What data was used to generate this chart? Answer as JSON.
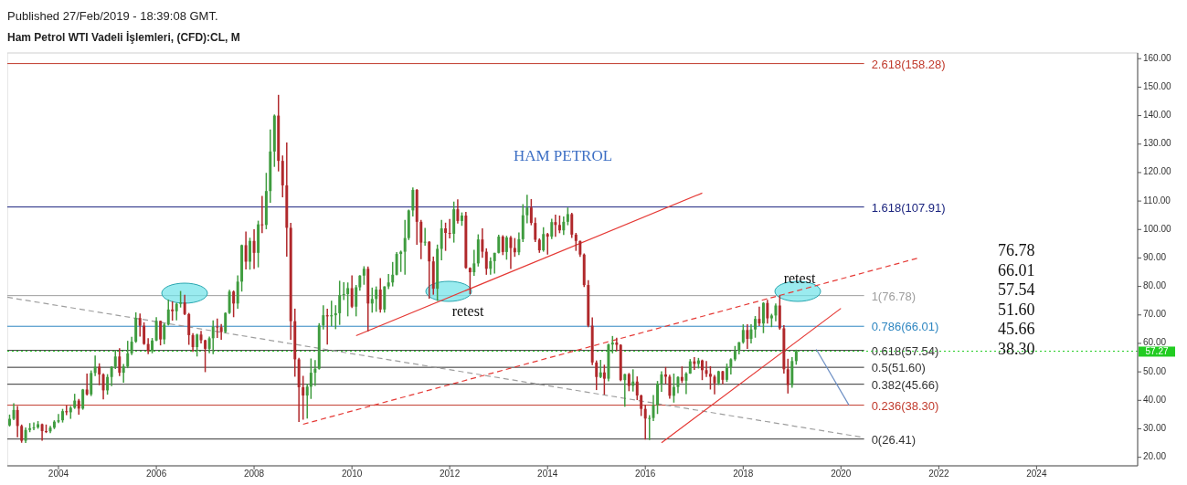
{
  "chart_data": {
    "type": "candlestick",
    "subtitle": "Published 27/Feb/2019 - 18:39:08 GMT.",
    "title": "Ham Petrol WTI Vadeli İşlemleri, (CFD):CL, M",
    "x": [
      "2003-01",
      "2003-02",
      "2003-03",
      "2003-04",
      "2003-05",
      "2003-06",
      "2003-07",
      "2003-08",
      "2003-09",
      "2003-10",
      "2003-11",
      "2003-12",
      "2004-01",
      "2004-02",
      "2004-03",
      "2004-04",
      "2004-05",
      "2004-06",
      "2004-07",
      "2004-08",
      "2004-09",
      "2004-10",
      "2004-11",
      "2004-12",
      "2005-01",
      "2005-02",
      "2005-03",
      "2005-04",
      "2005-05",
      "2005-06",
      "2005-07",
      "2005-08",
      "2005-09",
      "2005-10",
      "2005-11",
      "2005-12",
      "2006-01",
      "2006-02",
      "2006-03",
      "2006-04",
      "2006-05",
      "2006-06",
      "2006-07",
      "2006-08",
      "2006-09",
      "2006-10",
      "2006-11",
      "2006-12",
      "2007-01",
      "2007-02",
      "2007-03",
      "2007-04",
      "2007-05",
      "2007-06",
      "2007-07",
      "2007-08",
      "2007-09",
      "2007-10",
      "2007-11",
      "2007-12",
      "2008-01",
      "2008-02",
      "2008-03",
      "2008-04",
      "2008-05",
      "2008-06",
      "2008-07",
      "2008-08",
      "2008-09",
      "2008-10",
      "2008-11",
      "2008-12",
      "2009-01",
      "2009-02",
      "2009-03",
      "2009-04",
      "2009-05",
      "2009-06",
      "2009-07",
      "2009-08",
      "2009-09",
      "2009-10",
      "2009-11",
      "2009-12",
      "2010-01",
      "2010-02",
      "2010-03",
      "2010-04",
      "2010-05",
      "2010-06",
      "2010-07",
      "2010-08",
      "2010-09",
      "2010-10",
      "2010-11",
      "2010-12",
      "2011-01",
      "2011-02",
      "2011-03",
      "2011-04",
      "2011-05",
      "2011-06",
      "2011-07",
      "2011-08",
      "2011-09",
      "2011-10",
      "2011-11",
      "2011-12",
      "2012-01",
      "2012-02",
      "2012-03",
      "2012-04",
      "2012-05",
      "2012-06",
      "2012-07",
      "2012-08",
      "2012-09",
      "2012-10",
      "2012-11",
      "2012-12",
      "2013-01",
      "2013-02",
      "2013-03",
      "2013-04",
      "2013-05",
      "2013-06",
      "2013-07",
      "2013-08",
      "2013-09",
      "2013-10",
      "2013-11",
      "2013-12",
      "2014-01",
      "2014-02",
      "2014-03",
      "2014-04",
      "2014-05",
      "2014-06",
      "2014-07",
      "2014-08",
      "2014-09",
      "2014-10",
      "2014-11",
      "2014-12",
      "2015-01",
      "2015-02",
      "2015-03",
      "2015-04",
      "2015-05",
      "2015-06",
      "2015-07",
      "2015-08",
      "2015-09",
      "2015-10",
      "2015-11",
      "2015-12",
      "2016-01",
      "2016-02",
      "2016-03",
      "2016-04",
      "2016-05",
      "2016-06",
      "2016-07",
      "2016-08",
      "2016-09",
      "2016-10",
      "2016-11",
      "2016-12",
      "2017-01",
      "2017-02",
      "2017-03",
      "2017-04",
      "2017-05",
      "2017-06",
      "2017-07",
      "2017-08",
      "2017-09",
      "2017-10",
      "2017-11",
      "2017-12",
      "2018-01",
      "2018-02",
      "2018-03",
      "2018-04",
      "2018-05",
      "2018-06",
      "2018-07",
      "2018-08",
      "2018-09",
      "2018-10",
      "2018-11",
      "2018-12",
      "2019-01",
      "2019-02"
    ],
    "ohlc": [
      [
        31.2,
        35.0,
        30.8,
        33.5
      ],
      [
        33.5,
        39.0,
        33.0,
        36.6
      ],
      [
        36.6,
        38.0,
        27.0,
        31.0
      ],
      [
        31.0,
        31.5,
        25.1,
        25.8
      ],
      [
        25.8,
        30.5,
        25.0,
        29.6
      ],
      [
        29.6,
        32.0,
        28.8,
        30.2
      ],
      [
        30.2,
        32.2,
        29.5,
        30.5
      ],
      [
        30.5,
        32.7,
        30.0,
        31.6
      ],
      [
        31.6,
        31.8,
        25.8,
        29.2
      ],
      [
        29.2,
        31.5,
        28.5,
        29.1
      ],
      [
        29.1,
        31.0,
        28.5,
        30.4
      ],
      [
        30.4,
        33.0,
        29.9,
        32.5
      ],
      [
        32.5,
        35.2,
        32.0,
        33.0
      ],
      [
        33.0,
        37.0,
        32.2,
        36.2
      ],
      [
        36.2,
        38.2,
        34.8,
        35.8
      ],
      [
        35.8,
        38.0,
        33.5,
        37.4
      ],
      [
        37.4,
        42.3,
        37.0,
        39.9
      ],
      [
        39.9,
        40.5,
        35.0,
        37.1
      ],
      [
        37.1,
        44.0,
        36.7,
        43.8
      ],
      [
        43.8,
        49.4,
        41.7,
        42.1
      ],
      [
        42.1,
        50.5,
        41.5,
        49.6
      ],
      [
        49.6,
        55.7,
        48.5,
        51.8
      ],
      [
        51.8,
        53.0,
        45.3,
        49.1
      ],
      [
        49.1,
        49.5,
        40.3,
        43.5
      ],
      [
        43.5,
        49.2,
        42.0,
        48.2
      ],
      [
        48.2,
        52.0,
        45.0,
        51.8
      ],
      [
        51.8,
        57.6,
        51.0,
        55.4
      ],
      [
        55.4,
        58.3,
        48.5,
        49.7
      ],
      [
        49.7,
        52.8,
        46.2,
        51.9
      ],
      [
        51.9,
        60.9,
        51.3,
        56.5
      ],
      [
        56.5,
        62.3,
        55.9,
        60.6
      ],
      [
        60.6,
        70.9,
        60.2,
        68.9
      ],
      [
        68.9,
        70.5,
        62.4,
        66.2
      ],
      [
        66.2,
        67.4,
        59.5,
        59.8
      ],
      [
        59.8,
        61.8,
        56.2,
        57.3
      ],
      [
        57.3,
        61.9,
        56.5,
        61.0
      ],
      [
        61.0,
        69.2,
        60.8,
        67.9
      ],
      [
        67.9,
        68.0,
        59.3,
        61.4
      ],
      [
        61.4,
        67.1,
        59.7,
        66.6
      ],
      [
        66.6,
        75.4,
        66.3,
        71.9
      ],
      [
        71.9,
        74.8,
        68.0,
        71.3
      ],
      [
        71.3,
        74.3,
        68.1,
        73.9
      ],
      [
        73.9,
        78.4,
        72.6,
        74.4
      ],
      [
        74.4,
        77.1,
        69.9,
        70.3
      ],
      [
        70.3,
        70.7,
        59.5,
        62.9
      ],
      [
        62.9,
        63.6,
        57.0,
        58.7
      ],
      [
        58.7,
        63.4,
        55.4,
        63.1
      ],
      [
        63.1,
        64.4,
        60.0,
        61.1
      ],
      [
        61.1,
        61.3,
        49.9,
        58.1
      ],
      [
        58.1,
        62.4,
        56.5,
        61.8
      ],
      [
        61.8,
        68.1,
        56.2,
        65.9
      ],
      [
        65.9,
        68.7,
        61.9,
        65.7
      ],
      [
        65.7,
        66.8,
        61.3,
        64.0
      ],
      [
        64.0,
        70.9,
        63.6,
        70.7
      ],
      [
        70.7,
        78.8,
        70.3,
        78.2
      ],
      [
        78.2,
        78.6,
        69.2,
        74.0
      ],
      [
        74.0,
        83.9,
        72.2,
        81.7
      ],
      [
        81.7,
        94.7,
        78.2,
        94.5
      ],
      [
        94.5,
        99.3,
        86.0,
        88.7
      ],
      [
        88.7,
        97.1,
        85.9,
        96.0
      ],
      [
        96.0,
        100.1,
        86.1,
        91.8
      ],
      [
        91.8,
        103.1,
        86.7,
        101.8
      ],
      [
        101.8,
        111.8,
        98.7,
        101.6
      ],
      [
        101.6,
        119.9,
        100.1,
        113.5
      ],
      [
        113.5,
        135.1,
        109.4,
        127.4
      ],
      [
        127.4,
        140.4,
        122.0,
        140.0
      ],
      [
        140.0,
        147.3,
        120.4,
        124.1
      ],
      [
        124.1,
        126.0,
        111.3,
        115.5
      ],
      [
        115.5,
        130.6,
        90.5,
        100.6
      ],
      [
        100.6,
        102.3,
        61.3,
        67.8
      ],
      [
        67.8,
        72.2,
        48.3,
        54.4
      ],
      [
        54.4,
        54.9,
        32.4,
        44.6
      ],
      [
        44.6,
        48.6,
        33.2,
        41.7
      ],
      [
        41.7,
        45.8,
        33.6,
        44.8
      ],
      [
        44.8,
        54.7,
        40.5,
        49.7
      ],
      [
        49.7,
        54.1,
        45.1,
        51.1
      ],
      [
        51.1,
        67.1,
        50.8,
        66.3
      ],
      [
        66.3,
        73.4,
        64.9,
        69.9
      ],
      [
        69.9,
        72.2,
        59.6,
        69.5
      ],
      [
        69.5,
        75.0,
        66.0,
        69.9
      ],
      [
        69.9,
        73.4,
        65.0,
        70.6
      ],
      [
        70.6,
        82.0,
        66.5,
        77.0
      ],
      [
        77.0,
        81.5,
        75.2,
        77.3
      ],
      [
        77.3,
        81.4,
        69.5,
        79.4
      ],
      [
        79.4,
        83.9,
        72.4,
        72.9
      ],
      [
        72.9,
        80.5,
        69.5,
        79.7
      ],
      [
        79.7,
        84.0,
        78.5,
        83.8
      ],
      [
        83.8,
        87.1,
        80.6,
        86.2
      ],
      [
        86.2,
        87.0,
        64.2,
        74.0
      ],
      [
        74.0,
        79.6,
        70.8,
        75.6
      ],
      [
        75.6,
        80.0,
        71.1,
        78.9
      ],
      [
        78.9,
        82.9,
        70.8,
        71.9
      ],
      [
        71.9,
        80.0,
        70.8,
        80.0
      ],
      [
        80.0,
        84.4,
        79.1,
        81.4
      ],
      [
        81.4,
        88.6,
        80.0,
        84.1
      ],
      [
        84.1,
        92.1,
        83.9,
        91.4
      ],
      [
        91.4,
        92.6,
        85.1,
        92.2
      ],
      [
        92.2,
        103.4,
        84.1,
        97.0
      ],
      [
        97.0,
        107.0,
        96.3,
        106.7
      ],
      [
        106.7,
        114.8,
        104.6,
        113.9
      ],
      [
        113.9,
        114.2,
        94.6,
        102.7
      ],
      [
        102.7,
        103.4,
        89.6,
        95.4
      ],
      [
        95.4,
        100.6,
        94.3,
        95.7
      ],
      [
        95.7,
        95.9,
        75.7,
        88.8
      ],
      [
        88.8,
        90.5,
        77.1,
        79.2
      ],
      [
        79.2,
        94.7,
        74.9,
        93.2
      ],
      [
        93.2,
        103.4,
        89.2,
        100.4
      ],
      [
        100.4,
        102.4,
        92.5,
        98.8
      ],
      [
        98.8,
        103.7,
        96.9,
        98.5
      ],
      [
        98.5,
        109.8,
        95.4,
        107.1
      ],
      [
        107.1,
        110.6,
        102.1,
        103.0
      ],
      [
        103.0,
        106.0,
        101.3,
        104.9
      ],
      [
        104.9,
        106.2,
        86.2,
        86.5
      ],
      [
        86.5,
        86.7,
        77.3,
        85.0
      ],
      [
        85.0,
        92.9,
        83.7,
        88.1
      ],
      [
        88.1,
        98.3,
        87.0,
        96.5
      ],
      [
        96.5,
        100.4,
        90.1,
        92.2
      ],
      [
        92.2,
        93.4,
        84.1,
        86.2
      ],
      [
        86.2,
        90.2,
        84.1,
        88.9
      ],
      [
        88.9,
        91.8,
        84.5,
        91.8
      ],
      [
        91.8,
        98.2,
        91.6,
        97.5
      ],
      [
        97.5,
        98.0,
        91.0,
        92.1
      ],
      [
        92.1,
        97.8,
        89.4,
        97.2
      ],
      [
        97.2,
        97.8,
        86.1,
        93.5
      ],
      [
        93.5,
        97.0,
        90.4,
        92.0
      ],
      [
        92.0,
        99.0,
        91.0,
        96.6
      ],
      [
        96.6,
        108.9,
        95.6,
        105.0
      ],
      [
        105.0,
        112.2,
        102.2,
        107.7
      ],
      [
        107.7,
        110.7,
        101.5,
        102.3
      ],
      [
        102.3,
        104.2,
        95.6,
        96.4
      ],
      [
        96.4,
        96.9,
        91.8,
        92.7
      ],
      [
        92.7,
        100.8,
        92.2,
        98.4
      ],
      [
        98.4,
        98.8,
        91.2,
        97.5
      ],
      [
        97.5,
        103.8,
        96.6,
        102.6
      ],
      [
        102.6,
        105.2,
        97.4,
        101.6
      ],
      [
        101.6,
        104.9,
        98.7,
        99.7
      ],
      [
        99.7,
        104.6,
        98.1,
        102.7
      ],
      [
        102.7,
        107.7,
        101.5,
        105.4
      ],
      [
        105.4,
        105.9,
        97.0,
        98.2
      ],
      [
        98.2,
        98.8,
        92.5,
        96.0
      ],
      [
        96.0,
        96.1,
        90.4,
        91.2
      ],
      [
        91.2,
        91.6,
        79.8,
        80.5
      ],
      [
        80.5,
        82.2,
        65.7,
        66.2
      ],
      [
        66.2,
        69.1,
        52.4,
        53.3
      ],
      [
        53.3,
        54.0,
        43.6,
        48.2
      ],
      [
        48.2,
        54.2,
        47.8,
        49.8
      ],
      [
        49.8,
        52.5,
        42.0,
        47.6
      ],
      [
        47.6,
        59.9,
        46.7,
        59.6
      ],
      [
        59.6,
        62.6,
        56.5,
        60.3
      ],
      [
        60.3,
        62.0,
        57.3,
        59.5
      ],
      [
        59.5,
        59.7,
        46.7,
        47.1
      ],
      [
        47.1,
        49.3,
        37.8,
        49.2
      ],
      [
        49.2,
        49.6,
        43.2,
        45.1
      ],
      [
        45.1,
        50.9,
        43.1,
        46.6
      ],
      [
        46.6,
        48.4,
        40.1,
        41.7
      ],
      [
        41.7,
        42.0,
        34.5,
        37.0
      ],
      [
        37.0,
        38.4,
        26.2,
        33.6
      ],
      [
        33.6,
        34.8,
        26.05,
        33.8
      ],
      [
        33.8,
        41.9,
        32.7,
        38.3
      ],
      [
        38.3,
        46.8,
        35.2,
        45.9
      ],
      [
        45.9,
        50.2,
        43.0,
        49.1
      ],
      [
        49.1,
        51.7,
        45.8,
        48.3
      ],
      [
        48.3,
        49.0,
        40.6,
        41.6
      ],
      [
        41.6,
        49.4,
        39.2,
        44.7
      ],
      [
        44.7,
        48.4,
        42.5,
        48.2
      ],
      [
        48.2,
        51.9,
        46.1,
        46.9
      ],
      [
        46.9,
        49.9,
        42.2,
        49.4
      ],
      [
        49.4,
        54.5,
        49.3,
        53.7
      ],
      [
        53.7,
        55.2,
        50.7,
        52.8
      ],
      [
        52.8,
        54.9,
        51.2,
        54.0
      ],
      [
        54.0,
        54.3,
        47.1,
        50.6
      ],
      [
        50.6,
        53.8,
        48.2,
        49.3
      ],
      [
        49.3,
        52.0,
        43.8,
        48.3
      ],
      [
        48.3,
        48.9,
        42.1,
        46.0
      ],
      [
        46.0,
        50.4,
        45.4,
        50.2
      ],
      [
        50.2,
        50.4,
        45.6,
        47.2
      ],
      [
        47.2,
        52.9,
        46.5,
        51.7
      ],
      [
        51.7,
        54.8,
        49.1,
        54.4
      ],
      [
        54.4,
        59.1,
        53.8,
        57.4
      ],
      [
        57.4,
        60.5,
        56.1,
        60.4
      ],
      [
        60.4,
        66.7,
        59.9,
        64.7
      ],
      [
        64.7,
        66.7,
        58.1,
        61.6
      ],
      [
        61.6,
        66.7,
        60.0,
        64.9
      ],
      [
        64.9,
        69.6,
        62.0,
        68.6
      ],
      [
        68.6,
        72.9,
        66.1,
        67.0
      ],
      [
        67.0,
        74.5,
        63.6,
        74.2
      ],
      [
        74.2,
        75.3,
        67.0,
        68.8
      ],
      [
        68.8,
        70.4,
        65.7,
        69.8
      ],
      [
        69.8,
        74.0,
        67.8,
        73.3
      ],
      [
        73.3,
        76.9,
        64.8,
        65.3
      ],
      [
        65.3,
        66.4,
        49.4,
        50.9
      ],
      [
        50.9,
        54.6,
        42.4,
        45.4
      ],
      [
        45.4,
        55.2,
        44.4,
        53.8
      ],
      [
        53.8,
        57.8,
        52.5,
        57.27
      ]
    ],
    "series": [
      {
        "type": "line",
        "x": [
          "2002-12-15",
          "2020-06"
        ],
        "values": [
          76.2,
          27.1
        ],
        "color": "#9e9e9e",
        "line_style": "dashed"
      },
      {
        "type": "line",
        "x": [
          "2010-02",
          "2017-03"
        ],
        "values": [
          62.7,
          112.8
        ],
        "color": "#e53935",
        "line_style": "solid"
      },
      {
        "type": "line",
        "x": [
          "2009-01",
          "2021-08"
        ],
        "values": [
          31.6,
          90.0
        ],
        "color": "#e53935",
        "line_style": "dashed"
      },
      {
        "type": "line",
        "x": [
          "2016-05",
          "2020-01"
        ],
        "values": [
          25.1,
          72.3
        ],
        "color": "#e53935",
        "line_style": "solid"
      },
      {
        "type": "line",
        "x": [
          "2019-07",
          "2020-03"
        ],
        "values": [
          57.9,
          38.3
        ],
        "color": "#6d8fc4",
        "line_style": "solid"
      }
    ],
    "xlim": [
      "2002-12-15",
      "2026-01-25"
    ],
    "xticks": [
      "2004",
      "2006",
      "2008",
      "2010",
      "2012",
      "2014",
      "2016",
      "2018",
      "2020",
      "2022",
      "2024"
    ],
    "ylim": [
      17,
      162
    ],
    "yticks": [
      {
        "value": 20,
        "label": "20.00"
      },
      {
        "value": 30,
        "label": "30.00"
      },
      {
        "value": 40,
        "label": "40.00"
      },
      {
        "value": 50,
        "label": "50.00"
      },
      {
        "value": 60,
        "label": "60.00"
      },
      {
        "value": 70,
        "label": "70.00"
      },
      {
        "value": 80,
        "label": "80.00"
      },
      {
        "value": 90,
        "label": "90.00"
      },
      {
        "value": 100,
        "label": "100.00"
      },
      {
        "value": 110,
        "label": "110.00"
      },
      {
        "value": 120,
        "label": "120.00"
      },
      {
        "value": 130,
        "label": "130.00"
      },
      {
        "value": 140,
        "label": "140.00"
      },
      {
        "value": 150,
        "label": "150.00"
      },
      {
        "value": 160,
        "label": "160.00"
      }
    ],
    "ref_lines": [
      {
        "axis": "y",
        "value": 158.28,
        "label": "2.618(158.28)",
        "color": "#c0392b"
      },
      {
        "axis": "y",
        "value": 107.91,
        "label": "1.618(107.91)",
        "color": "#1a237e"
      },
      {
        "axis": "y",
        "value": 76.78,
        "label": "1(76.78)",
        "color": "#9e9e9e"
      },
      {
        "axis": "y",
        "value": 66.01,
        "label": "0.786(66.01)",
        "color": "#2e86c1"
      },
      {
        "axis": "y",
        "value": 57.54,
        "label": "0.618(57.54)",
        "color": "#333333"
      },
      {
        "axis": "y",
        "value": 51.6,
        "label": "0.5(51.60)",
        "color": "#333333"
      },
      {
        "axis": "y",
        "value": 45.66,
        "label": "0.382(45.66)",
        "color": "#333333"
      },
      {
        "axis": "y",
        "value": 38.3,
        "label": "0.236(38.30)",
        "color": "#c0392b"
      },
      {
        "axis": "y",
        "value": 26.41,
        "label": "0(26.41)",
        "color": "#333333"
      },
      {
        "axis": "y",
        "value": 57.27,
        "label": "57.27",
        "color": "#22cc22",
        "line_style": "dotted"
      }
    ],
    "annotations": [
      "HAM PETROL",
      "retest",
      "retest",
      "76.78\n66.01\n57.54\n51.60\n45.66\n38.30"
    ]
  }
}
